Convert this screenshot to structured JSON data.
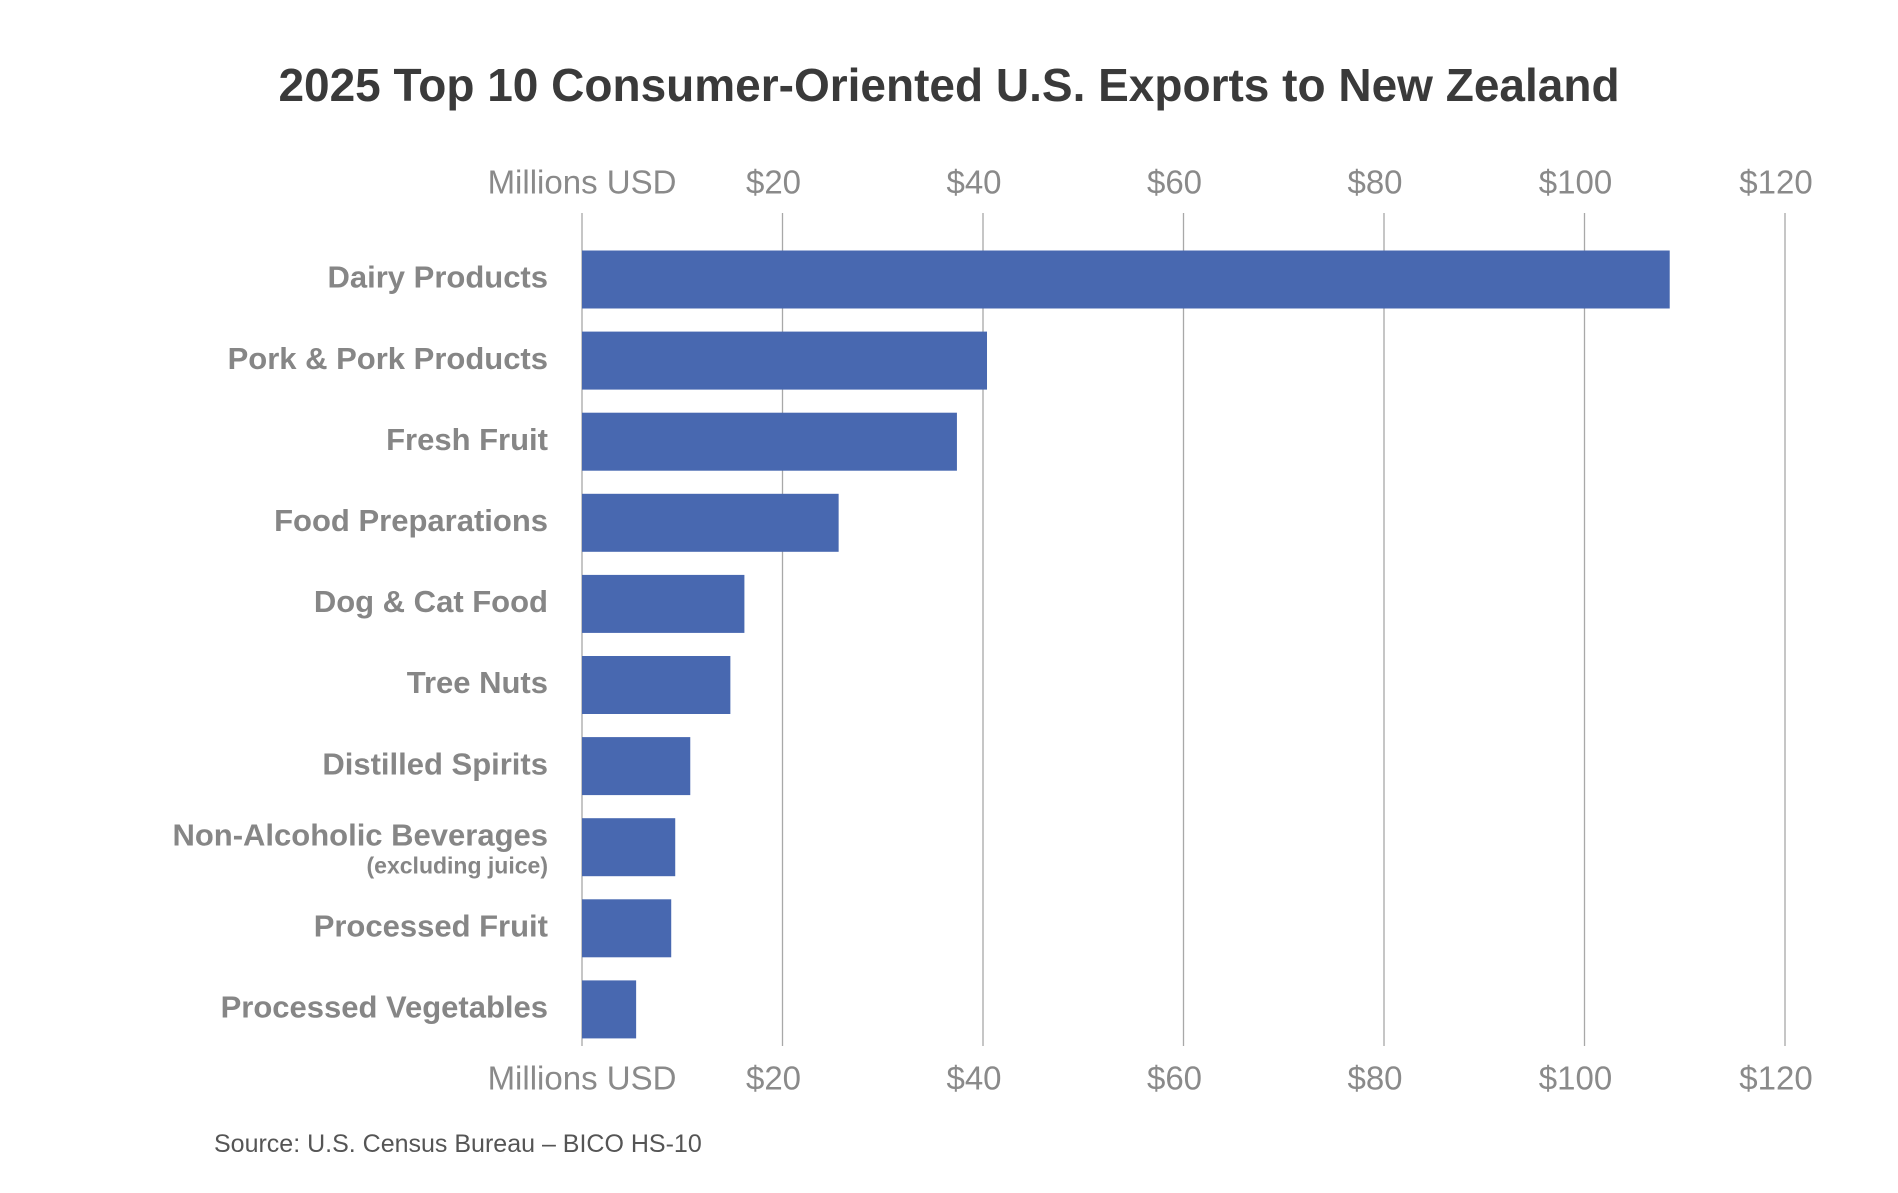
{
  "chart_data": {
    "type": "bar",
    "orientation": "horizontal",
    "title": "2025 Top 10 Consumer-Oriented U.S. Exports to New Zealand",
    "xlabel": "Millions USD",
    "ylabel": "",
    "xlim": [
      0,
      120
    ],
    "xticks": [
      20,
      40,
      60,
      80,
      100,
      120
    ],
    "tick_labels": [
      "$20",
      "$40",
      "$60",
      "$80",
      "$100",
      "$120"
    ],
    "axis_label_positions": [
      "top",
      "bottom"
    ],
    "grid": true,
    "categories": [
      {
        "label": "Dairy Products",
        "sublabel": ""
      },
      {
        "label": "Pork & Pork Products",
        "sublabel": ""
      },
      {
        "label": "Fresh Fruit",
        "sublabel": ""
      },
      {
        "label": "Food Preparations",
        "sublabel": ""
      },
      {
        "label": "Dog & Cat Food",
        "sublabel": ""
      },
      {
        "label": "Tree Nuts",
        "sublabel": ""
      },
      {
        "label": "Distilled Spirits",
        "sublabel": ""
      },
      {
        "label": "Non-Alcoholic Beverages",
        "sublabel": "(excluding juice)"
      },
      {
        "label": "Processed Fruit",
        "sublabel": ""
      },
      {
        "label": "Processed Vegetables",
        "sublabel": ""
      }
    ],
    "values": [
      108.5,
      40.4,
      37.4,
      25.6,
      16.2,
      14.8,
      10.8,
      9.3,
      8.9,
      5.4
    ],
    "bar_color": "#4868b0",
    "source": "Source: U.S. Census Bureau – BICO HS-10"
  }
}
